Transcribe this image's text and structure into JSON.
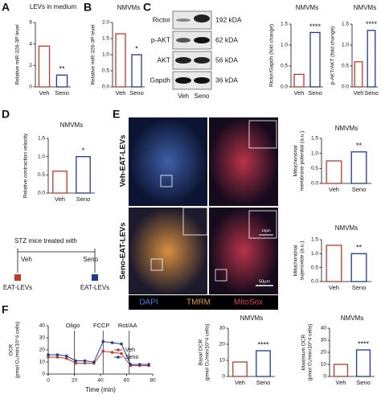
{
  "panel_labels": [
    "A",
    "B",
    "C",
    "D",
    "E",
    "F"
  ],
  "blot": {
    "bands": [
      {
        "name": "Rictor",
        "size": "192 kDA"
      },
      {
        "name": "p-AKT",
        "size": "62 kDA"
      },
      {
        "name": "AKT",
        "size": "56 kDA"
      },
      {
        "name": "Gapdh",
        "size": "36 kDA"
      }
    ],
    "lanes": [
      "Veh",
      "Seno"
    ]
  },
  "legend_d": {
    "title": "STZ mice treated with",
    "groups": [
      "Veh",
      "Seno"
    ],
    "treatment": "EAT-LEVs"
  },
  "images": {
    "rows": [
      "Veh-EAT-LEVs",
      "Seno-EAT-LEVs"
    ],
    "channels": [
      "DAPI",
      "TMRM",
      "MitoSox"
    ],
    "scale_bars": [
      "10μm",
      "50μm"
    ]
  },
  "chart_data": [
    {
      "type": "bar",
      "title": "LEVs in medium",
      "y_label": [
        "Relative miR-326-3P level"
      ],
      "categories": [
        "Veh",
        "Seno"
      ],
      "values": [
        3.8,
        1.1
      ],
      "colors": [
        "#c0392b",
        "#1f3a93"
      ],
      "ylim": [
        0,
        6
      ],
      "yticks": [
        0,
        2,
        4,
        6
      ],
      "annotation": "**"
    },
    {
      "type": "bar",
      "title": "NMVMs",
      "y_label": [
        "Relative miR-326-3P level"
      ],
      "categories": [
        "Veh",
        "Seno"
      ],
      "values": [
        1.65,
        1.0
      ],
      "colors": [
        "#c0392b",
        "#1f3a93"
      ],
      "ylim": [
        0,
        2
      ],
      "yticks": [
        {
          "value": 0,
          "label": "0.0"
        },
        {
          "value": 0.5,
          "label": "0.5"
        },
        {
          "value": 1,
          "label": "1.0"
        },
        {
          "value": 1.5,
          "label": "1.5"
        },
        {
          "value": 2,
          "label": "2.0"
        }
      ],
      "annotation": "*"
    },
    {
      "type": "bar",
      "title": "NMVMs",
      "y_label": [
        "Rictor/Gapdh (fold change)"
      ],
      "categories": [
        "Veh",
        "Seno"
      ],
      "values": [
        0.3,
        1.3
      ],
      "colors": [
        "#c0392b",
        "#1f3a93"
      ],
      "ylim": [
        0,
        1.5
      ],
      "yticks": [
        {
          "value": 0,
          "label": "0.0"
        },
        {
          "value": 0.5,
          "label": "0.5"
        },
        {
          "value": 1,
          "label": "1.0"
        },
        {
          "value": 1.5,
          "label": "1.5"
        }
      ],
      "annotation": "****"
    },
    {
      "type": "bar",
      "title": "NMVMs",
      "y_label": [
        "p-AKT/AKT (fold change)"
      ],
      "categories": [
        "Veh",
        "Seno"
      ],
      "values": [
        0.6,
        1.35
      ],
      "colors": [
        "#c0392b",
        "#1f3a93"
      ],
      "ylim": [
        0,
        1.5
      ],
      "yticks": [
        {
          "value": 0,
          "label": "0.0"
        },
        {
          "value": 0.5,
          "label": "0.5"
        },
        {
          "value": 1,
          "label": "1.0"
        },
        {
          "value": 1.5,
          "label": "1.5"
        }
      ],
      "annotation": "****"
    },
    {
      "type": "bar",
      "title": "NMVMs",
      "y_label": [
        "Relative contraction velocity"
      ],
      "categories": [
        "Veh",
        "Seno"
      ],
      "values": [
        0.6,
        1.0
      ],
      "colors": [
        "#c0392b",
        "#1f3a93"
      ],
      "ylim": [
        0,
        1.5
      ],
      "yticks": [
        {
          "value": 0,
          "label": "0.0"
        },
        {
          "value": 0.5,
          "label": "0.5"
        },
        {
          "value": 1,
          "label": "1.0"
        },
        {
          "value": 1.5,
          "label": "1.5"
        }
      ],
      "annotation": "*"
    },
    {
      "type": "bar",
      "title": "NMVMs",
      "y_label": [
        "Mitochondrial",
        "membrane potential (a.u.)"
      ],
      "categories": [
        "Veh",
        "Seno"
      ],
      "values": [
        0.75,
        1.05
      ],
      "colors": [
        "#c0392b",
        "#1f3a93"
      ],
      "ylim": [
        0,
        1.5
      ],
      "yticks": [
        {
          "value": 0,
          "label": "0.0"
        },
        {
          "value": 0.5,
          "label": "0.5"
        },
        {
          "value": 1,
          "label": "1.0"
        },
        {
          "value": 1.5,
          "label": "1.5"
        }
      ],
      "annotation": "**"
    },
    {
      "type": "bar",
      "title": "NMVMs",
      "y_label": [
        "Mitochondrial",
        "superoxide (a.u.)"
      ],
      "categories": [
        "Veh",
        "Seno"
      ],
      "values": [
        1.3,
        1.0
      ],
      "colors": [
        "#c0392b",
        "#1f3a93"
      ],
      "ylim": [
        0,
        1.5
      ],
      "yticks": [
        {
          "value": 0,
          "label": "0.0"
        },
        {
          "value": 0.5,
          "label": "0.5"
        },
        {
          "value": 1,
          "label": "1.0"
        },
        {
          "value": 1.5,
          "label": "1.5"
        }
      ],
      "annotation": "**"
    },
    {
      "type": "line",
      "y_label": [
        "OCR",
        "(pmol O₂/min/10^4 cells)"
      ],
      "x_label": "Time (min)",
      "x": [
        0,
        7,
        14,
        21,
        28,
        35,
        42,
        49,
        56,
        63,
        70,
        77
      ],
      "series": [
        {
          "name": "Veh",
          "color": "#c0392b",
          "values": [
            14,
            14,
            13,
            9,
            9,
            9,
            19,
            18,
            17,
            7,
            7,
            7
          ]
        },
        {
          "name": "Seno",
          "color": "#1f3a93",
          "values": [
            16,
            16,
            15,
            11,
            11,
            10,
            27,
            26,
            25,
            8,
            8,
            8
          ]
        }
      ],
      "xlim": [
        0,
        80
      ],
      "xticks": [
        0,
        20,
        40,
        60,
        80
      ],
      "ylim": [
        0,
        40
      ],
      "yticks": [
        0,
        10,
        20,
        30,
        40
      ],
      "injections": [
        {
          "label": "Oligo",
          "value": 20
        },
        {
          "label": "FCCP",
          "value": 42
        },
        {
          "label": "Rot/AA",
          "value": 62
        }
      ]
    },
    {
      "type": "bar",
      "title": "NMVMs",
      "y_label": [
        "Basal OCR",
        "(pmol O₂/min/10^4 cells)"
      ],
      "categories": [
        "Veh",
        "Seno"
      ],
      "values": [
        9,
        16
      ],
      "colors": [
        "#c0392b",
        "#1f3a93"
      ],
      "ylim": [
        0,
        30
      ],
      "yticks": [
        0,
        10,
        20,
        30
      ],
      "annotation": "****"
    },
    {
      "type": "bar",
      "title": "NMVMs",
      "y_label": [
        "Maximum OCR",
        "(pmol O₂/min/10^4 cells)"
      ],
      "categories": [
        "Veh",
        "Seno"
      ],
      "values": [
        10,
        22
      ],
      "colors": [
        "#c0392b",
        "#1f3a93"
      ],
      "ylim": [
        0,
        40
      ],
      "yticks": [
        0,
        10,
        20,
        30,
        40
      ],
      "annotation": "****"
    }
  ]
}
